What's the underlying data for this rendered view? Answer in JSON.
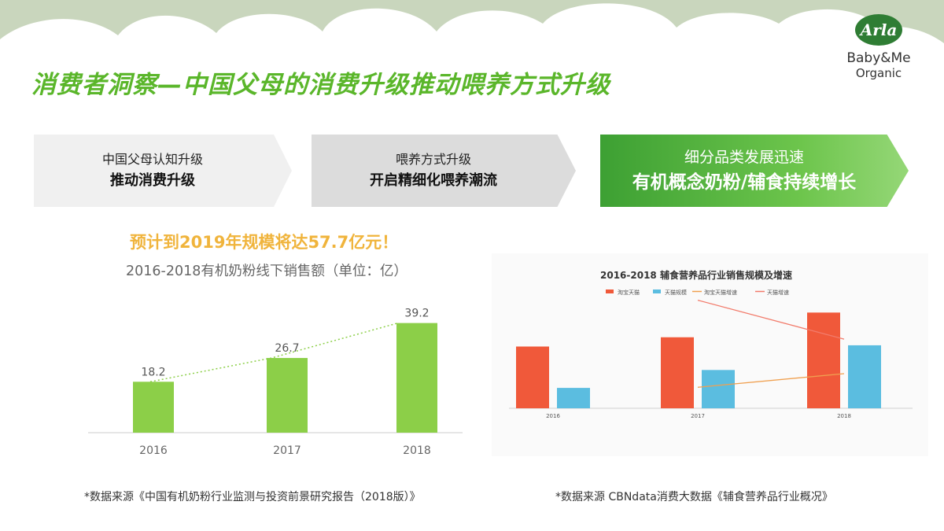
{
  "slide": {
    "title": "消费者洞察—中国父母的消费升级推动喂养方式升级"
  },
  "logo": {
    "badge": "Arla",
    "line1": "Baby&Me",
    "line2": "Organic",
    "brand_color": "#2f7d34"
  },
  "arrows": [
    {
      "line1": "中国父母认知升级",
      "line2": "推动消费升级"
    },
    {
      "line1": "喂养方式升级",
      "line2": "开启精细化喂养潮流"
    },
    {
      "line1": "细分品类发展迅速",
      "line2": "有机概念奶粉/辅食持续增长"
    }
  ],
  "left": {
    "forecast": "预计到2019年规模将达57.7亿元！",
    "chart_title": "2016-2018有机奶粉线下销售额（单位：亿）"
  },
  "sources": {
    "left": "*数据来源《中国有机奶粉行业监测与投资前景研究报告（2018版）》",
    "right": "*数据来源 CBNdata消费大数据《辅食营养品行业概况》"
  },
  "colors": {
    "title_green": "#5ab62a",
    "bar_green": "#8ccf48",
    "forecast_gold": "#f0b43c",
    "taobao_red": "#f0593a",
    "tmall_blue": "#5bbde0",
    "cloud_bg": "#c9d6bd"
  },
  "chart_data": [
    {
      "type": "bar",
      "title": "2016-2018有机奶粉线下销售额（单位：亿）",
      "categories": [
        "2016",
        "2017",
        "2018"
      ],
      "values": [
        18.2,
        26.7,
        39.2
      ],
      "data_labels": [
        "18.2",
        "26.7",
        "39.2"
      ],
      "ylim": [
        0,
        45
      ],
      "trendline": true,
      "grid": false,
      "color": "#8ccf48"
    },
    {
      "type": "bar",
      "title": "2016-2018 辅食营养品行业销售规模及增速",
      "categories": [
        "2016",
        "2017",
        "2018"
      ],
      "series": [
        {
          "name": "淘宝天猫",
          "values": [
            100,
            115,
            155
          ],
          "color": "#f0593a"
        },
        {
          "name": "天猫规模",
          "values": [
            33,
            62,
            102
          ],
          "color": "#5bbde0"
        }
      ],
      "lines": [
        {
          "name": "淘宝天猫增速",
          "x": [
            "2017",
            "2018"
          ],
          "values": [
            34,
            56
          ],
          "color": "#f0a050"
        },
        {
          "name": "天猫增速",
          "x": [
            "2017",
            "2018"
          ],
          "values": [
            175,
            112
          ],
          "color": "#f27b6b"
        }
      ],
      "ylim": [
        0,
        200
      ],
      "legend": "top"
    }
  ]
}
